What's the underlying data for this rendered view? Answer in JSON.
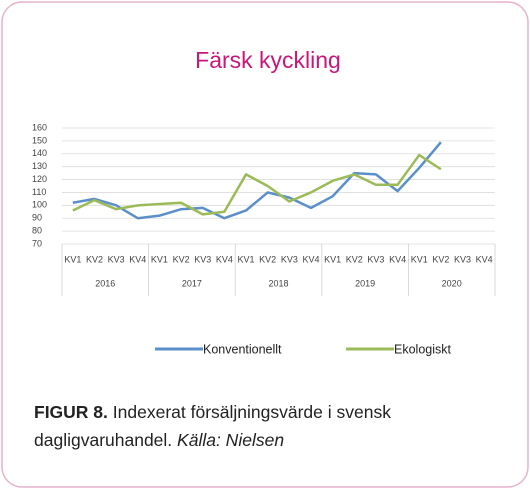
{
  "chart_data": {
    "type": "line",
    "title": "Färsk kyckling",
    "categories": [
      "KV1",
      "KV2",
      "KV3",
      "KV4",
      "KV1",
      "KV2",
      "KV3",
      "KV4",
      "KV1",
      "KV2",
      "KV3",
      "KV4",
      "KV1",
      "KV2",
      "KV3",
      "KV4",
      "KV1",
      "KV2",
      "KV3",
      "KV4"
    ],
    "category_groups": [
      "2016",
      "2017",
      "2018",
      "2019",
      "2020"
    ],
    "series": [
      {
        "name": "Konventionellt",
        "color": "#5b8fc9",
        "values": [
          102,
          105,
          100,
          90,
          92,
          97,
          98,
          90,
          96,
          110,
          106,
          98,
          107,
          125,
          124,
          111,
          129,
          149,
          null,
          null
        ]
      },
      {
        "name": "Ekologiskt",
        "color": "#9bbb59",
        "values": [
          96,
          104,
          97,
          100,
          101,
          102,
          93,
          95,
          124,
          115,
          103,
          110,
          119,
          124,
          116,
          116,
          139,
          128,
          null,
          null
        ]
      }
    ],
    "ylim": [
      70,
      160
    ],
    "yticks": [
      70,
      80,
      90,
      100,
      110,
      120,
      130,
      140,
      150,
      160
    ],
    "grid": true,
    "legend": "bottom",
    "caption_label": "FIGUR 8.",
    "caption_text": "Indexerat försäljningsvärde i svensk dagligvaruhandel.",
    "caption_source": "Källa: Nielsen"
  }
}
